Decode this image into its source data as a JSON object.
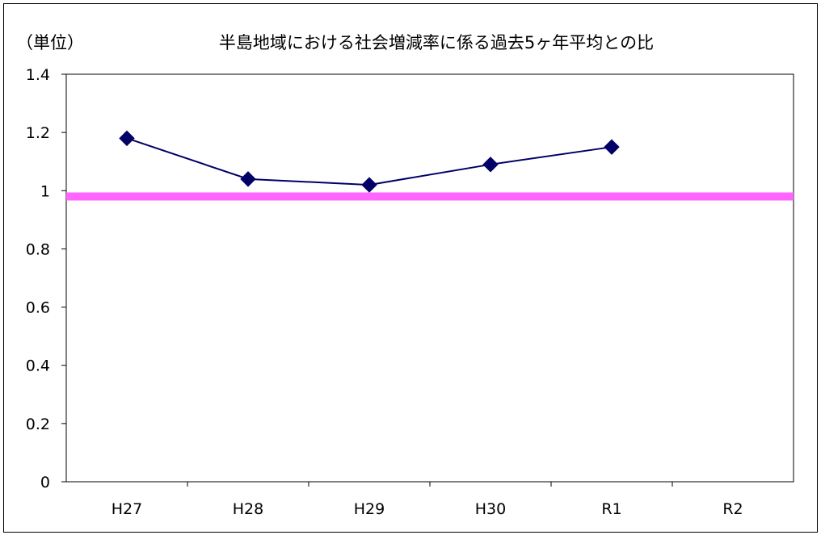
{
  "chart_data": {
    "type": "line",
    "title": "半島地域における社会増減率に係る過去5ヶ年平均との比",
    "unit_label": "（単位）",
    "categories": [
      "H27",
      "H28",
      "H29",
      "H30",
      "R1",
      "R2"
    ],
    "series": [
      {
        "values": [
          1.18,
          1.04,
          1.02,
          1.09,
          1.15,
          null
        ],
        "color": "#000066",
        "marker": "diamond"
      }
    ],
    "reference_line": {
      "value": 0.98,
      "color": "#ff66ff"
    },
    "ylim": [
      0,
      1.4
    ],
    "yticks": [
      0,
      0.2,
      0.4,
      0.6,
      0.8,
      1,
      1.2,
      1.4
    ],
    "ytick_labels": [
      "0",
      "0.2",
      "0.4",
      "0.6",
      "0.8",
      "1",
      "1.2",
      "1.4"
    ],
    "grid": false,
    "legend": "none"
  }
}
